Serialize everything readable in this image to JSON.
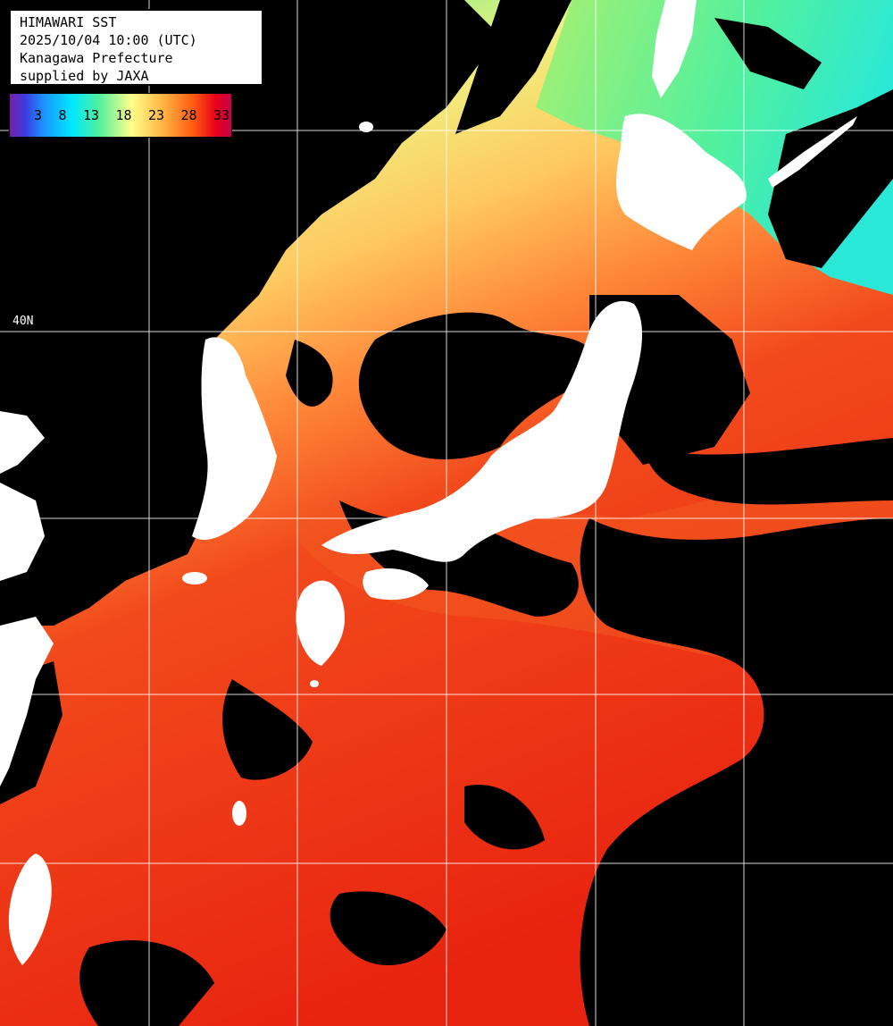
{
  "title": {
    "line1": "HIMAWARI SST",
    "line2": "2025/10/04 10:00 (UTC)",
    "line3": "Kanagawa Prefecture",
    "line4": "supplied by JAXA"
  },
  "legend": {
    "ticks": [
      "3",
      "8",
      "13",
      "18",
      "23",
      "28",
      "33"
    ],
    "colors": [
      "#7a1fa8",
      "#1e90ff",
      "#00e8ff",
      "#50f0a0",
      "#ffff8a",
      "#ffb040",
      "#ff5a10",
      "#e8001a",
      "#c8004a"
    ]
  },
  "grid": {
    "lat_label": "40N"
  },
  "colors": {
    "land": "#ffffff",
    "cloud_missing": "#000000",
    "grid_line": "#ffffff"
  }
}
